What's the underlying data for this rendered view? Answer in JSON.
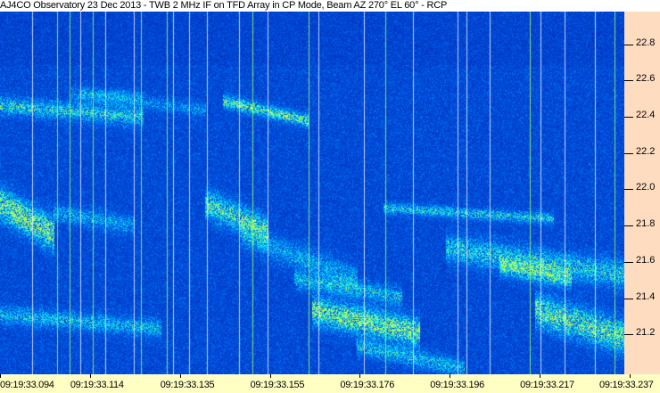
{
  "title": "AJ4CO Observatory 23 Dec 2013 - TWB 2 MHz IF on TFD Array in CP Mode, Beam AZ 270° EL 60° - RCP",
  "chart_data": {
    "type": "heatmap",
    "title": "AJ4CO Observatory 23 Dec 2013 - TWB 2 MHz IF on TFD Array in CP Mode, Beam AZ 270° EL 60° - RCP",
    "xlabel": "",
    "ylabel": "",
    "x_tick_labels": [
      "09:19:33.094",
      "09:19:33.114",
      "09:19:33.135",
      "09:19:33.155",
      "09:19:33.176",
      "09:19:33.196",
      "09:19:33.217",
      "09:19:33.237"
    ],
    "y_ticks": [
      22.8,
      22.6,
      22.4,
      22.2,
      22.0,
      21.8,
      21.6,
      21.4,
      21.2
    ],
    "y_tick_labels": [
      "22.8",
      "22.6",
      "22.4",
      "22.2",
      "22.0",
      "21.8",
      "21.6",
      "21.4",
      "21.2"
    ],
    "ylim": [
      20.98,
      22.98
    ],
    "y_axis_position": "right",
    "colormap": [
      "#00008c",
      "#0040e0",
      "#00c0ff",
      "#ffff40"
    ],
    "grid": false
  },
  "colors": {
    "axis_right_bg": "#fedcc0",
    "axis_bottom_bg": "#ffffc4"
  }
}
